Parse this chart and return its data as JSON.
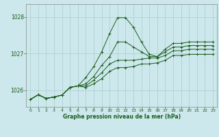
{
  "title": "Graphe pression niveau de la mer (hPa)",
  "bg_color": "#cce8ec",
  "grid_color": "#aacccc",
  "line_color": "#1a5c1a",
  "xlim": [
    -0.5,
    23.5
  ],
  "ylim": [
    1025.55,
    1028.35
  ],
  "yticks": [
    1026,
    1027,
    1028
  ],
  "xticks": [
    0,
    1,
    2,
    3,
    4,
    5,
    6,
    7,
    8,
    9,
    10,
    11,
    12,
    13,
    14,
    15,
    16,
    17,
    18,
    19,
    20,
    21,
    22,
    23
  ],
  "series1": [
    1025.75,
    1025.88,
    1025.78,
    1025.82,
    1025.87,
    1026.08,
    1026.12,
    1026.35,
    1026.65,
    1027.05,
    1027.55,
    1027.98,
    1027.98,
    1027.72,
    1027.32,
    1026.98,
    1026.92,
    1027.12,
    1027.28,
    1027.28,
    1027.32,
    1027.32,
    1027.32,
    1027.32
  ],
  "series2": [
    1025.75,
    1025.88,
    1025.78,
    1025.82,
    1025.87,
    1026.08,
    1026.12,
    1026.18,
    1026.38,
    1026.68,
    1026.92,
    1027.32,
    1027.32,
    1027.18,
    1027.05,
    1026.92,
    1026.92,
    1027.05,
    1027.18,
    1027.18,
    1027.22,
    1027.22,
    1027.22,
    1027.22
  ],
  "series3": [
    1025.75,
    1025.88,
    1025.78,
    1025.82,
    1025.87,
    1026.08,
    1026.12,
    1026.12,
    1026.28,
    1026.48,
    1026.72,
    1026.82,
    1026.82,
    1026.82,
    1026.85,
    1026.88,
    1026.88,
    1026.95,
    1027.08,
    1027.08,
    1027.12,
    1027.12,
    1027.12,
    1027.12
  ],
  "series4": [
    1025.75,
    1025.88,
    1025.78,
    1025.82,
    1025.87,
    1026.08,
    1026.12,
    1026.08,
    1026.18,
    1026.32,
    1026.52,
    1026.62,
    1026.62,
    1026.65,
    1026.72,
    1026.72,
    1026.75,
    1026.82,
    1026.95,
    1026.95,
    1026.98,
    1026.98,
    1026.98,
    1026.98
  ],
  "figsize": [
    3.2,
    2.0
  ],
  "dpi": 100
}
